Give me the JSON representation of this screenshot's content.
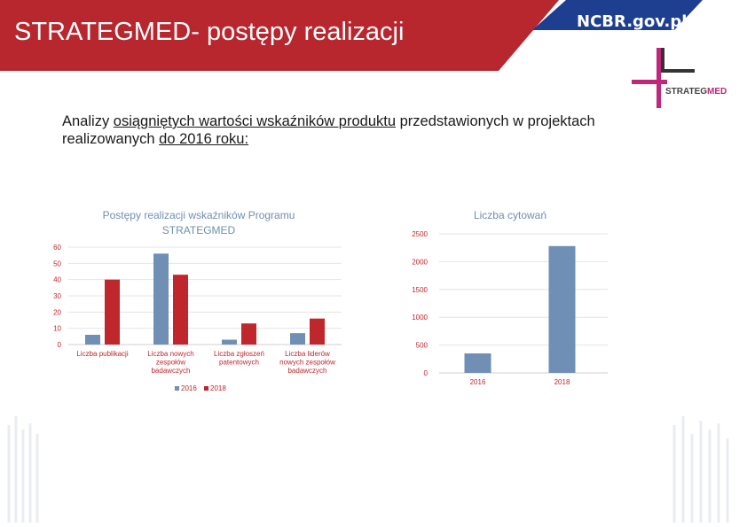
{
  "header": {
    "title": "STRATEGMED- postępy realizacji",
    "ncbr_logo": "NCBR.gov.pl",
    "strategmed_logo": "STRATEGMED",
    "band_color": "#b8262e",
    "logo_band_color": "#1e3f8f"
  },
  "intro": {
    "part1": "Analizy ",
    "part2": "osiągniętych wartości wskaźników produktu",
    "part3": " przedstawionych w projektach realizowanych ",
    "part4": "do 2016 roku: "
  },
  "chart_data": [
    {
      "type": "bar",
      "title": "Postępy realizacji wskaźników Programu STRATEGMED",
      "title_lines": [
        "Postępy realizacji wskaźników Programu",
        "STRATEGMED"
      ],
      "categories": [
        [
          "Liczba publikacji"
        ],
        [
          "Liczba nowych",
          "zespołów",
          "badawczych"
        ],
        [
          "Liczba zgłoszeń",
          "patentowych"
        ],
        [
          "Liczba liderów",
          "nowych zespołów",
          "badawczych"
        ]
      ],
      "series": [
        {
          "name": "2016",
          "values": [
            6,
            56,
            3,
            7
          ],
          "color": "#6f8fb5"
        },
        {
          "name": "2018",
          "values": [
            40,
            43,
            13,
            16
          ],
          "color": "#c0272d"
        }
      ],
      "ylim": [
        0,
        60
      ],
      "yticks": [
        "0",
        "10",
        "20",
        "30",
        "40",
        "50",
        "60"
      ],
      "legend": "bottom",
      "grid": true
    },
    {
      "type": "bar",
      "title": "Liczba cytowań",
      "categories": [
        "2016",
        "2018"
      ],
      "values": [
        350,
        2280
      ],
      "color": "#6f8fb5",
      "ylim": [
        0,
        2500
      ],
      "yticks": [
        "0",
        "500",
        "1000",
        "1500",
        "2000",
        "2500"
      ],
      "grid": true
    }
  ]
}
